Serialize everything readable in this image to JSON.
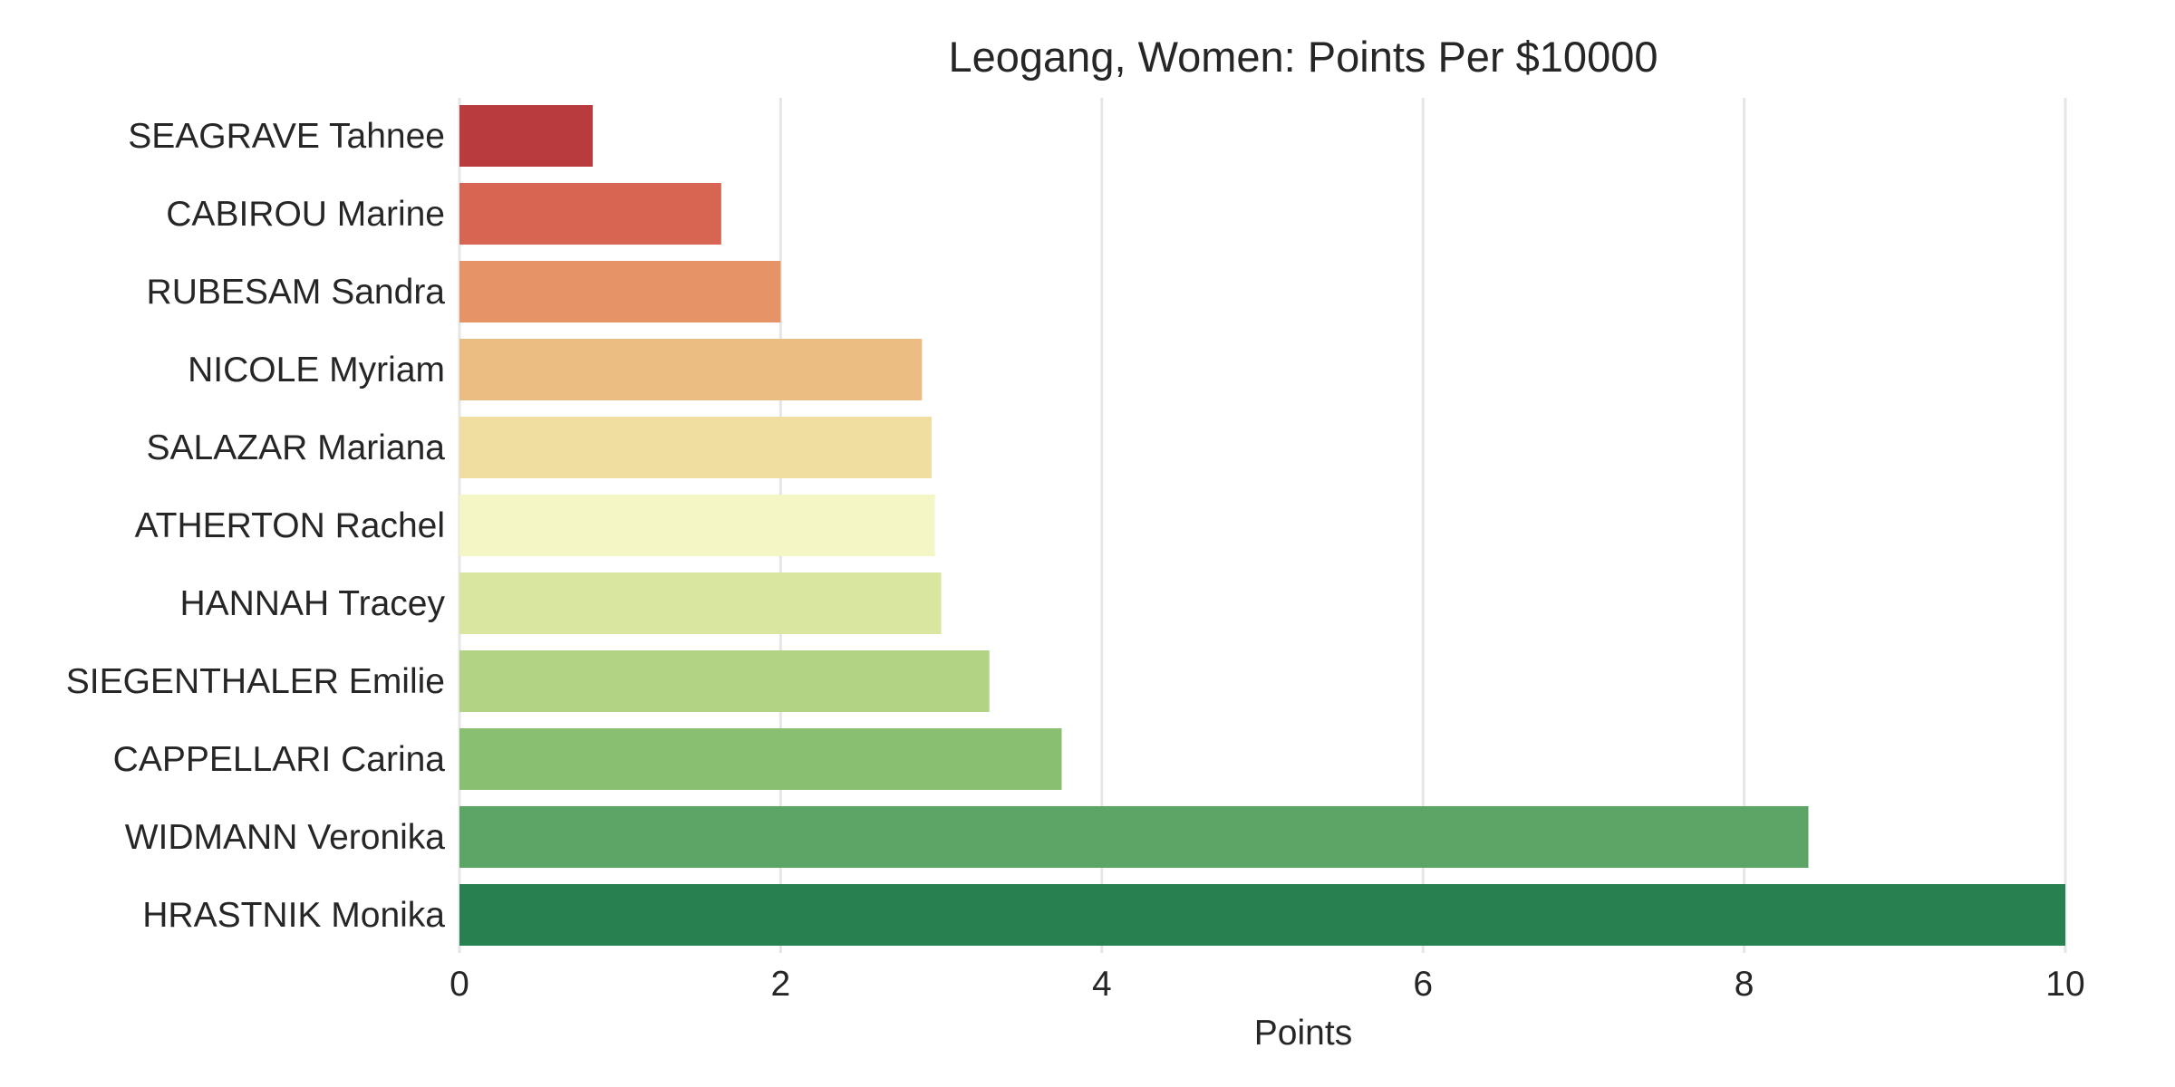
{
  "chart_data": {
    "type": "bar",
    "orientation": "horizontal",
    "title": "Leogang, Women: Points Per $10000",
    "xlabel": "Points",
    "ylabel": "",
    "xlim": [
      0,
      10
    ],
    "xticks": [
      0,
      2,
      4,
      6,
      8,
      10
    ],
    "grid": "vertical",
    "categories": [
      "SEAGRAVE Tahnee",
      "CABIROU Marine",
      "RUBESAM Sandra",
      "NICOLE Myriam",
      "SALAZAR Mariana",
      "ATHERTON Rachel",
      "HANNAH Tracey",
      "SIEGENTHALER Emilie",
      "CAPPELLARI Carina",
      "WIDMANN Veronika",
      "HRASTNIK Monika"
    ],
    "values": [
      0.83,
      1.63,
      2.0,
      2.88,
      2.94,
      2.96,
      3.0,
      3.3,
      3.75,
      8.4,
      10.0
    ],
    "colors": [
      "#b93b3e",
      "#d66651",
      "#e69367",
      "#ebbd82",
      "#f0dea0",
      "#f4f6c6",
      "#d9e69f",
      "#b3d384",
      "#89bf71",
      "#5ca567",
      "#268050"
    ]
  }
}
